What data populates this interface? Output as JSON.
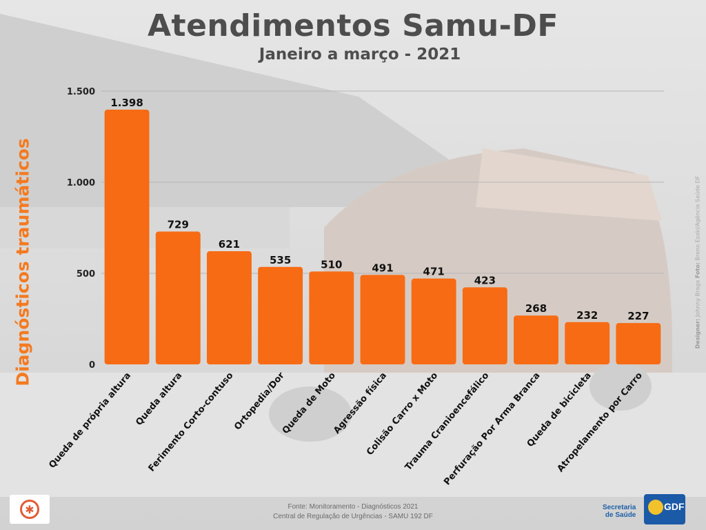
{
  "header": {
    "title": "Atendimentos Samu-DF",
    "subtitle": "Janeiro a março - 2021"
  },
  "side_label": "Diagnósticos traumáticos",
  "credits": {
    "designer_label": "Designer:",
    "designer_name": "Johnny Braga",
    "photo_label": "Foto:",
    "photo_name": "Breno Esaki/Agência Saúde DF"
  },
  "footer": {
    "line1": "Fonte: Monitoramento - Diagnósticos 2021",
    "line2": "Central de Regulação de Urgências - SAMU 192 DF"
  },
  "logos": {
    "secretaria_line1": "Secretaria",
    "secretaria_line2": "de Saúde",
    "gdf": "GDF"
  },
  "colors": {
    "bar": "#f76b14",
    "title": "#4d4d4d",
    "accent": "#f47a20",
    "grid": "#b5b5b5"
  },
  "chart_data": {
    "type": "bar",
    "title": "Atendimentos Samu-DF",
    "subtitle": "Janeiro a março - 2021",
    "ylabel": "Diagnósticos traumáticos",
    "xlabel": "",
    "ylim": [
      0,
      1500
    ],
    "yticks": [
      0,
      500,
      1000,
      1500
    ],
    "ytick_labels": [
      "0",
      "500",
      "1.000",
      "1.500"
    ],
    "grid": true,
    "categories": [
      "Queda de própria altura",
      "Queda altura",
      "Ferimento Corto-contuso",
      "Ortopedia/Dor",
      "Queda de Moto",
      "Agressão física",
      "Colisão Carro x Moto",
      "Trauma Cranioencefálico",
      "Perfuração Por Arma Branca",
      "Queda de bicicleta",
      "Atropelamento por Carro"
    ],
    "values": [
      1398,
      729,
      621,
      535,
      510,
      491,
      471,
      423,
      268,
      232,
      227
    ],
    "value_labels": [
      "1.398",
      "729",
      "621",
      "535",
      "510",
      "491",
      "471",
      "423",
      "268",
      "232",
      "227"
    ]
  }
}
